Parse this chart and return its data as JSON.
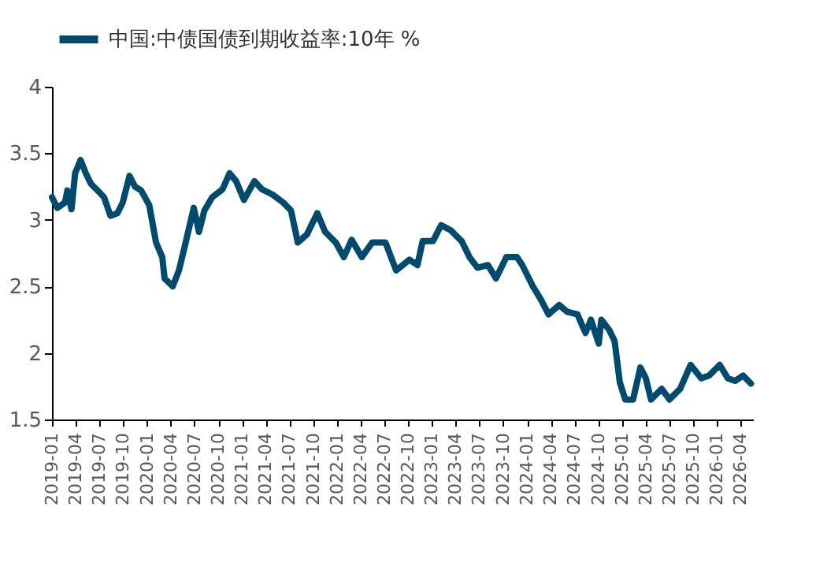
{
  "chart_data": {
    "type": "line",
    "x": [
      "2019-01-01",
      "2019-01-21",
      "2019-02-20",
      "2019-03-01",
      "2019-03-17",
      "2019-03-31",
      "2019-04-21",
      "2019-05-11",
      "2019-05-31",
      "2019-07-01",
      "2019-07-20",
      "2019-08-14",
      "2019-09-10",
      "2019-09-30",
      "2019-10-26",
      "2019-11-16",
      "2019-12-10",
      "2020-01-10",
      "2020-02-05",
      "2020-02-29",
      "2020-03-09",
      "2020-04-09",
      "2020-05-03",
      "2020-05-29",
      "2020-06-29",
      "2020-07-19",
      "2020-08-09",
      "2020-09-08",
      "2020-10-18",
      "2020-11-14",
      "2020-12-09",
      "2021-01-08",
      "2021-02-17",
      "2021-03-18",
      "2021-04-28",
      "2021-06-08",
      "2021-07-08",
      "2021-08-03",
      "2021-09-07",
      "2021-10-17",
      "2021-11-16",
      "2021-12-27",
      "2022-01-27",
      "2022-02-26",
      "2022-04-06",
      "2022-05-16",
      "2022-07-06",
      "2022-08-16",
      "2022-10-06",
      "2022-11-06",
      "2022-11-26",
      "2023-01-05",
      "2023-02-05",
      "2023-03-15",
      "2023-04-25",
      "2023-05-25",
      "2023-06-25",
      "2023-08-04",
      "2023-09-04",
      "2023-10-14",
      "2023-11-24",
      "2023-12-14",
      "2024-01-24",
      "2024-02-24",
      "2024-03-24",
      "2024-05-04",
      "2024-06-03",
      "2024-07-13",
      "2024-08-13",
      "2024-09-03",
      "2024-10-03",
      "2024-10-13",
      "2024-11-13",
      "2024-12-03",
      "2024-12-23",
      "2025-01-13",
      "2025-02-12",
      "2025-03-12",
      "2025-04-02",
      "2025-04-22",
      "2025-06-02",
      "2025-07-02",
      "2025-08-12",
      "2025-09-21",
      "2025-11-01",
      "2025-12-01",
      "2026-01-11",
      "2026-02-11",
      "2026-03-11",
      "2026-04-11",
      "2026-05-11"
    ],
    "series": [
      {
        "name": "中国:中债国债到期收益率:10年 %",
        "color": "#004a6e",
        "values": [
          3.17,
          3.09,
          3.13,
          3.22,
          3.08,
          3.35,
          3.45,
          3.35,
          3.27,
          3.21,
          3.17,
          3.03,
          3.05,
          3.13,
          3.33,
          3.25,
          3.22,
          3.11,
          2.83,
          2.72,
          2.56,
          2.5,
          2.62,
          2.83,
          3.09,
          2.91,
          3.07,
          3.17,
          3.23,
          3.35,
          3.29,
          3.15,
          3.29,
          3.23,
          3.19,
          3.13,
          3.07,
          2.83,
          2.89,
          3.05,
          2.91,
          2.83,
          2.72,
          2.85,
          2.72,
          2.83,
          2.83,
          2.62,
          2.7,
          2.66,
          2.84,
          2.84,
          2.96,
          2.92,
          2.84,
          2.72,
          2.64,
          2.66,
          2.56,
          2.72,
          2.72,
          2.66,
          2.5,
          2.4,
          2.29,
          2.36,
          2.31,
          2.29,
          2.15,
          2.25,
          2.07,
          2.25,
          2.17,
          2.09,
          1.78,
          1.65,
          1.65,
          1.89,
          1.81,
          1.65,
          1.73,
          1.65,
          1.73,
          1.91,
          1.81,
          1.83,
          1.91,
          1.81,
          1.79,
          1.83,
          1.77
        ]
      }
    ],
    "xlim": [
      "2019-01-01",
      "2026-05-19"
    ],
    "xticks": [
      "2019-01",
      "2019-04",
      "2019-07",
      "2019-10",
      "2020-01",
      "2020-04",
      "2020-07",
      "2020-10",
      "2021-01",
      "2021-04",
      "2021-07",
      "2021-10",
      "2022-01",
      "2022-04",
      "2022-07",
      "2022-10",
      "2023-01",
      "2023-04",
      "2023-07",
      "2023-10",
      "2024-01",
      "2024-04",
      "2024-07",
      "2024-10",
      "2025-01",
      "2025-04",
      "2025-07",
      "2025-10",
      "2026-01",
      "2026-04"
    ],
    "ylim": [
      1.5,
      4
    ],
    "yticks": [
      1.5,
      2,
      2.5,
      3,
      3.5,
      4
    ],
    "legend": "top",
    "grid": false,
    "line_style": "solid"
  }
}
